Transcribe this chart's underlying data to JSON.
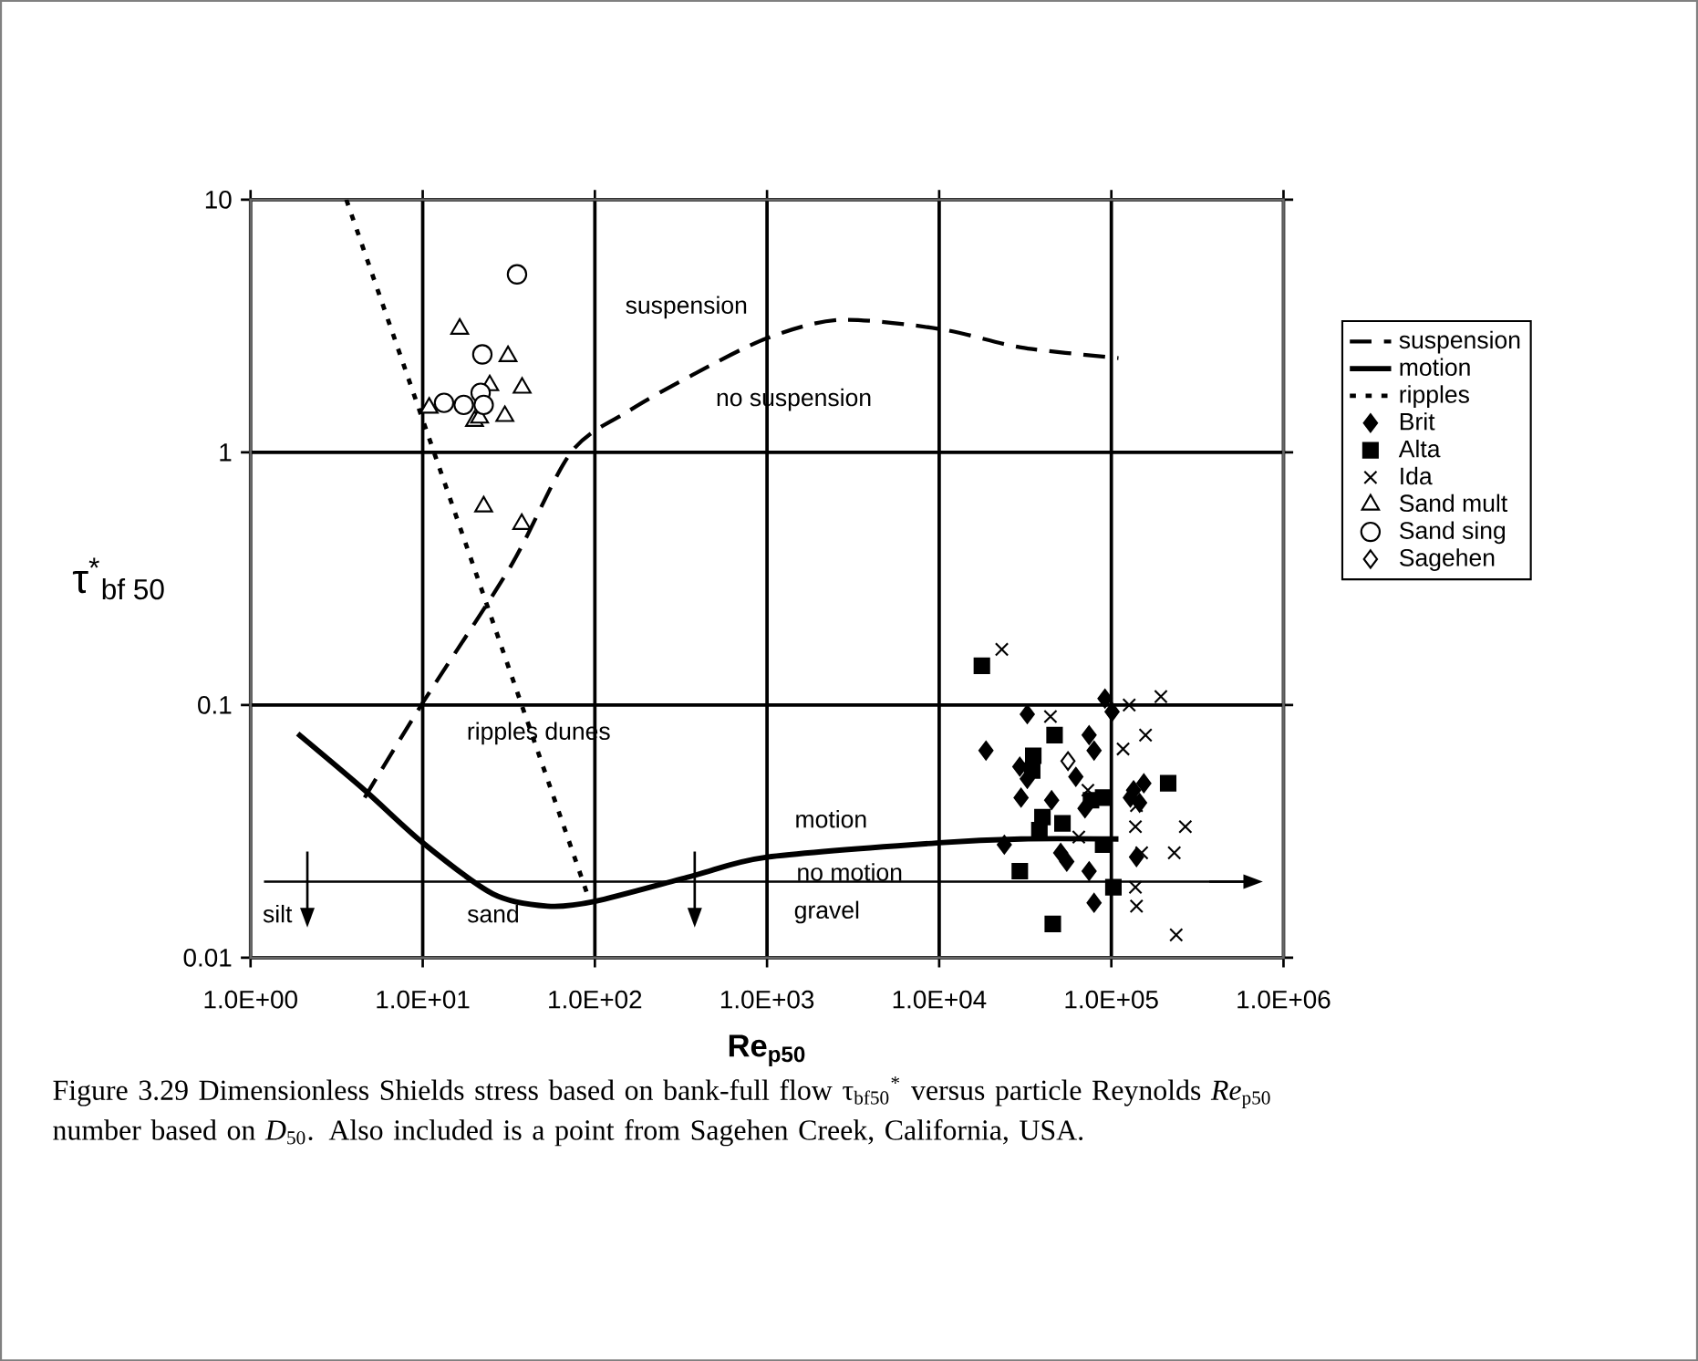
{
  "chart_data": {
    "type": "scatter",
    "xlabel": "**Re$_{p50}$**",
    "ylabel": "τ$^{*}$$_{bf 50}$",
    "xlim": [
      1,
      1000000
    ],
    "ylim": [
      0.01,
      10
    ],
    "log": "xy",
    "grid": true,
    "legend": "right",
    "xticks": [
      {
        "value": 1,
        "label": "1.0E+00"
      },
      {
        "value": 10,
        "label": "1.0E+01"
      },
      {
        "value": 100,
        "label": "1.0E+02"
      },
      {
        "value": 1000,
        "label": "1.0E+03"
      },
      {
        "value": 10000,
        "label": "1.0E+04"
      },
      {
        "value": 100000,
        "label": "1.0E+05"
      },
      {
        "value": 1000000,
        "label": "1.0E+06"
      }
    ],
    "yticks": [
      0.01,
      0.1,
      1,
      10
    ],
    "series": [
      {
        "name": "suspension",
        "type": "line",
        "line_style": "dashed",
        "marker": "none",
        "color": "#000000",
        "x": [
          4.6,
          10,
          32.6,
          72.8,
          158,
          372,
          1000,
          2630,
          10000,
          29900,
          110000
        ],
        "values": [
          0.043,
          0.102,
          0.356,
          1.0,
          1.46,
          2.03,
          2.83,
          3.34,
          3.08,
          2.6,
          2.36
        ]
      },
      {
        "name": "motion",
        "type": "line",
        "line_style": "solid",
        "marker": "none",
        "color": "#000000",
        "x": [
          1.88,
          4.6,
          10,
          25.5,
          53,
          100,
          372,
          1000,
          10000,
          29900,
          110000
        ],
        "values": [
          0.077,
          0.046,
          0.0285,
          0.0179,
          0.016,
          0.0167,
          0.0211,
          0.025,
          0.0285,
          0.0295,
          0.0295
        ]
      },
      {
        "name": "ripples",
        "type": "line",
        "line_style": "dotted",
        "marker": "none",
        "color": "#000000",
        "x": [
          3.6,
          90
        ],
        "values": [
          10,
          0.018
        ]
      },
      {
        "name": "Brit",
        "marker": "diamond",
        "color": "#000000",
        "x": [
          91800,
          32500,
          74300,
          79400,
          18700,
          29400,
          32500,
          62200,
          29900,
          45000,
          134600,
          154500,
          146000,
          70300,
          23900,
          50800,
          55100,
          74300,
          140000,
          79400,
          101000,
          129000
        ],
        "values": [
          0.106,
          0.092,
          0.076,
          0.066,
          0.066,
          0.057,
          0.051,
          0.052,
          0.043,
          0.042,
          0.046,
          0.049,
          0.041,
          0.039,
          0.028,
          0.026,
          0.024,
          0.022,
          0.025,
          0.0165,
          0.094,
          0.043
        ]
      },
      {
        "name": "Alta",
        "marker": "square",
        "color": "#000000",
        "x": [
          17700,
          46800,
          35200,
          34700,
          76200,
          89600,
          39800,
          38200,
          52000,
          89600,
          29400,
          102800,
          45700,
          213800
        ],
        "values": [
          0.143,
          0.076,
          0.063,
          0.055,
          0.042,
          0.043,
          0.036,
          0.032,
          0.034,
          0.028,
          0.022,
          0.019,
          0.0136,
          0.049
        ]
      },
      {
        "name": "Ida",
        "marker": "cross",
        "color": "#000000",
        "x": [
          23100,
          44300,
          127000,
          194000,
          117000,
          158000,
          73100,
          140000,
          138000,
          269000,
          64700,
          150000,
          232000,
          138000,
          238000,
          140000
        ],
        "values": [
          0.166,
          0.09,
          0.1,
          0.108,
          0.067,
          0.076,
          0.046,
          0.04,
          0.033,
          0.033,
          0.03,
          0.026,
          0.026,
          0.019,
          0.0123,
          0.016
        ]
      },
      {
        "name": "Sand mult",
        "marker": "triangle",
        "color": "#ffffff",
        "x": [
          16.4,
          31.3,
          24.5,
          37.8,
          10.9,
          20,
          21.4,
          30,
          22.6,
          37.6
        ],
        "values": [
          3.08,
          2.4,
          1.84,
          1.8,
          1.5,
          1.33,
          1.37,
          1.39,
          0.61,
          0.52
        ]
      },
      {
        "name": "Sand sing",
        "marker": "circle",
        "color": "#ffffff",
        "x": [
          35.3,
          22.2,
          13.3,
          17.3,
          21.7,
          22.6
        ],
        "values": [
          5.06,
          2.44,
          1.57,
          1.54,
          1.72,
          1.54
        ]
      },
      {
        "name": "Sagehen",
        "marker": "diamond",
        "color": "#ffffff",
        "x": [
          56000
        ],
        "values": [
          0.06
        ]
      }
    ],
    "ref_lines": [
      {
        "axis": "y",
        "value": 0.02
      }
    ],
    "annotations": [
      "suspension",
      "no suspension",
      "ripples  dunes",
      "motion",
      "no motion",
      "silt",
      "sand",
      "gravel",
      "Figure 3.29  Dimensionless Shields stress based on bank-full flow τ$_{bf50}$$^{*}$ versus particle Reynolds *Re*$_{p50}$ number based on *D*$_{50}$.  Also included is a point from Sagehen Creek, California, USA."
    ]
  }
}
